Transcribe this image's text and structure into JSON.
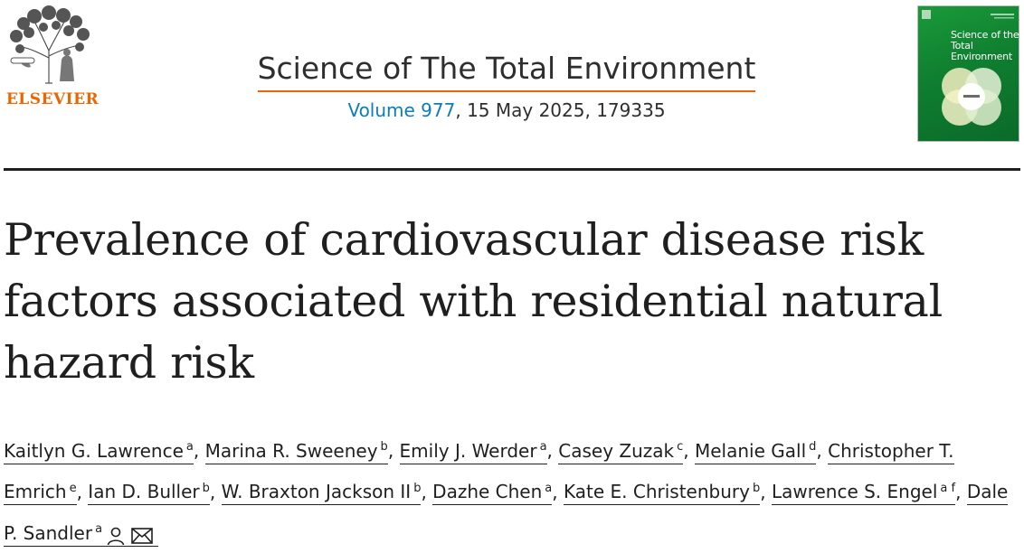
{
  "header": {
    "publisher_logo": {
      "text": "ELSEVIER",
      "color": "#eb6500"
    },
    "journal_title": "Science of The Total Environment",
    "volume_link": "Volume 977",
    "issue_info": ", 15 May 2025, 179335",
    "cover": {
      "title_line1": "Science of the",
      "title_line2": "Total Environment",
      "color": "#0f7f30"
    },
    "accent_color": "#eb6500",
    "link_color": "#0c7dbb"
  },
  "article": {
    "title": "Prevalence of cardiovascular disease risk factors associated with residential natural hazard risk"
  },
  "authors": [
    {
      "name": "Kaitlyn G. Lawrence",
      "aff": "a",
      "sep": ", "
    },
    {
      "name": "Marina R. Sweeney",
      "aff": "b",
      "sep": ", "
    },
    {
      "name": "Emily J. Werder",
      "aff": "a",
      "sep": ", "
    },
    {
      "name": "Casey Zuzak",
      "aff": "c",
      "sep": ", "
    },
    {
      "name": "Melanie Gall",
      "aff": "d",
      "sep": ", "
    },
    {
      "name": "Christopher T. Emrich",
      "aff": "e",
      "sep": ", "
    },
    {
      "name": "Ian D. Buller",
      "aff": "b",
      "sep": ", "
    },
    {
      "name": "W. Braxton Jackson II",
      "aff": "b",
      "sep": ", "
    },
    {
      "name": "Dazhe Chen",
      "aff": "a",
      "sep": ", "
    },
    {
      "name": "Kate E. Christenbury",
      "aff": "b",
      "sep": ", "
    },
    {
      "name": "Lawrence S. Engel",
      "aff": "a f",
      "sep": ", "
    },
    {
      "name": "Dale P. Sandler",
      "aff": "a",
      "sep": "",
      "icons": [
        "person-icon",
        "envelope-icon"
      ]
    }
  ]
}
